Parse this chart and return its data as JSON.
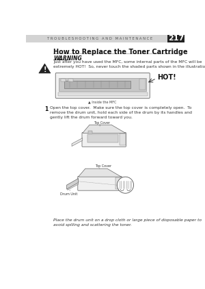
{
  "bg_color": "#ffffff",
  "header_bg": "#d3d3d3",
  "header_text": "T R O U B L E S H O O T I N G   A N D   M A I N T E N A N C E",
  "header_text_color": "#555555",
  "page_num": "217",
  "page_num_bg": "#222222",
  "page_num_color": "#ffffff",
  "section_title": "How to Replace the Toner Cartridge",
  "warning_label": "WARNING",
  "warning_text": "Just after you have used the MFC, some internal parts of the MFC will be\nextremely HOT!  So, never touch the shaded parts shown in the illustration.",
  "hot_label": "HOT!",
  "inside_label": "▲ Inside the MFC",
  "step1_num": "1",
  "step1_text": "Open the top cover.  Make sure the top cover is completely open.  To\nremove the drum unit, hold each side of the drum by its handles and\ngently lift the drum forward toward you.",
  "top_cover_label1": "Top Cover",
  "top_cover_label2": "Top Cover",
  "drum_unit_label": "Drum Unit",
  "footer_text": "Place the drum unit on a drop cloth or large piece of disposable paper to\navoid spilling and scattering the toner."
}
